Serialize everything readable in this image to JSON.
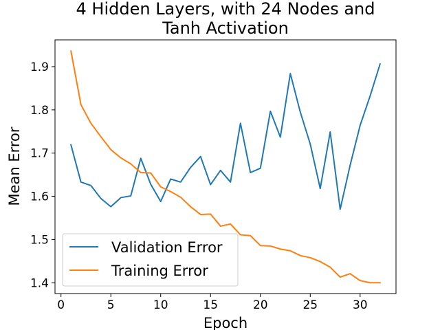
{
  "chart_data": {
    "type": "line",
    "title_line1": "4 Hidden Layers, with 24 Nodes and",
    "title_line2": "Tanh Activation",
    "xlabel": "Epoch",
    "ylabel": "Mean Error",
    "xlim": [
      -0.6,
      33.6
    ],
    "ylim": [
      1.375,
      1.962
    ],
    "xticks": [
      0,
      5,
      10,
      15,
      20,
      25,
      30
    ],
    "yticks": [
      1.4,
      1.5,
      1.6,
      1.7,
      1.8,
      1.9
    ],
    "ytick_labels": [
      "1.4",
      "1.5",
      "1.6",
      "1.7",
      "1.8",
      "1.9"
    ],
    "legend_position": "lower-left",
    "grid": false,
    "x": [
      1,
      2,
      3,
      4,
      5,
      6,
      7,
      8,
      9,
      10,
      11,
      12,
      13,
      14,
      15,
      16,
      17,
      18,
      19,
      20,
      21,
      22,
      23,
      24,
      25,
      26,
      27,
      28,
      29,
      30,
      31,
      32
    ],
    "series": [
      {
        "name": "Validation Error",
        "color": "#1f77b4",
        "values": [
          1.719,
          1.633,
          1.625,
          1.595,
          1.576,
          1.597,
          1.601,
          1.688,
          1.628,
          1.588,
          1.64,
          1.633,
          1.667,
          1.692,
          1.627,
          1.66,
          1.633,
          1.769,
          1.655,
          1.665,
          1.797,
          1.737,
          1.884,
          1.795,
          1.721,
          1.618,
          1.749,
          1.57,
          1.672,
          1.764,
          1.832,
          1.906
        ]
      },
      {
        "name": "Training Error",
        "color": "#ff7f0e",
        "values": [
          1.936,
          1.812,
          1.769,
          1.738,
          1.708,
          1.689,
          1.675,
          1.655,
          1.654,
          1.622,
          1.611,
          1.598,
          1.576,
          1.558,
          1.559,
          1.531,
          1.536,
          1.511,
          1.509,
          1.486,
          1.485,
          1.478,
          1.474,
          1.463,
          1.458,
          1.449,
          1.436,
          1.413,
          1.421,
          1.405,
          1.4,
          1.4
        ]
      }
    ]
  }
}
